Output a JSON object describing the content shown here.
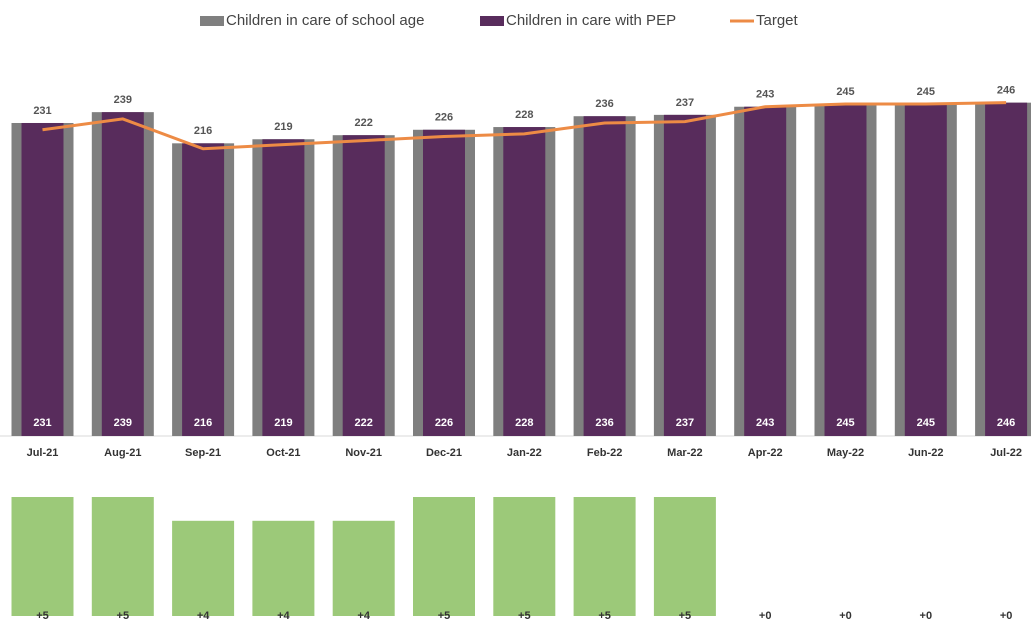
{
  "chart_data": [
    {
      "type": "bar",
      "categories": [
        "Jul-21",
        "Aug-21",
        "Sep-21",
        "Oct-21",
        "Nov-21",
        "Dec-21",
        "Jan-22",
        "Feb-22",
        "Mar-22",
        "Apr-22",
        "May-22",
        "Jun-22",
        "Jul-22"
      ],
      "series": [
        {
          "name": "Children in care of school age",
          "color": "#7f7f7f",
          "values": [
            231,
            239,
            216,
            219,
            222,
            226,
            228,
            236,
            237,
            243,
            245,
            245,
            246
          ]
        },
        {
          "name": "Children in care with PEP",
          "color": "#582c5c",
          "values": [
            231,
            239,
            216,
            219,
            222,
            226,
            228,
            236,
            237,
            243,
            245,
            245,
            246
          ]
        },
        {
          "name": "Target",
          "type": "line",
          "color": "#ed8b45",
          "values": [
            226,
            234,
            212,
            215,
            218,
            221,
            223,
            231,
            232,
            243,
            245,
            245,
            246
          ]
        }
      ]
    },
    {
      "type": "bar",
      "color": "#9cc979",
      "values": [
        5,
        5,
        4,
        4,
        4,
        5,
        5,
        5,
        5,
        0,
        0,
        0,
        0
      ],
      "value_labels": [
        "+5",
        "+5",
        "+4",
        "+4",
        "+4",
        "+5",
        "+5",
        "+5",
        "+5",
        "+0",
        "+0",
        "+0",
        "+0"
      ]
    }
  ]
}
